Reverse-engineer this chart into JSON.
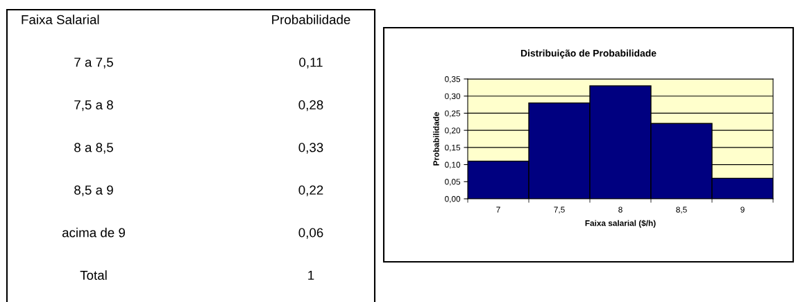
{
  "chart_data": [
    {
      "type": "other",
      "annotations": [
        "Faixa Salarial",
        "Probabilidade",
        "7 a 7,5",
        "0,11",
        "7,5 a 8",
        "0,28",
        "8 a 8,5",
        "0,33",
        "8,5 a 9",
        "0,22",
        "acima de 9",
        "0,06",
        "Total",
        "1"
      ]
    },
    {
      "type": "bar",
      "title": "Distribuição de Probabilidade",
      "xlabel": "Faixa salarial ($/h)",
      "ylabel": "Probabilidade",
      "categories": [
        "7",
        "7,5",
        "8",
        "8,5",
        "9"
      ],
      "values": [
        0.11,
        0.28,
        0.33,
        0.22,
        0.06
      ],
      "color": "#000080",
      "ylim": [
        0,
        0.35
      ],
      "yticks": [
        {
          "value": 0,
          "label": "0,00"
        },
        {
          "value": 0.05,
          "label": "0,05"
        },
        {
          "value": 0.1,
          "label": "0,10"
        },
        {
          "value": 0.15,
          "label": "0,15"
        },
        {
          "value": 0.2,
          "label": "0,20"
        },
        {
          "value": 0.25,
          "label": "0,25"
        },
        {
          "value": 0.3,
          "label": "0,30"
        },
        {
          "value": 0.35,
          "label": "0,35"
        }
      ],
      "bands": [
        {
          "axis": "y",
          "from": 0,
          "to": 0.35,
          "color": "#ffffcc"
        }
      ],
      "grid": "y",
      "legend": false
    }
  ]
}
